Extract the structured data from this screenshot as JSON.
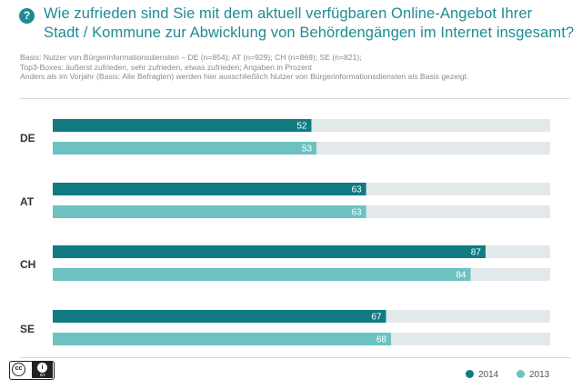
{
  "header": {
    "badge": "?",
    "title_line1": "Wie zufrieden sind Sie mit dem aktuell verfügbaren Online-Angebot Ihrer",
    "title_line2": "Stadt / Kommune zur Abwicklung von Behördengängen im Internet insgesamt?"
  },
  "basis": {
    "line1": "Basis: Nutzer von Bürgerinformationsdiensten – DE (n=854); AT (n=929); CH (n=869); SE (n=821);",
    "line2": "Top3-Boxes: äußerst zufrieden, sehr zufrieden, etwas zufrieden; Angaben in Prozent",
    "line3": "Anders als im Vorjahr (Basis: Alle Befragten) werden hier ausschließlich Nutzer von Bürgerinformationsdiensten als Basis gezeigt."
  },
  "colors": {
    "series_2014": "#117b82",
    "series_2013": "#6cc2c1",
    "track": "#e3e8ea",
    "title": "#1d8b93"
  },
  "license": {
    "cc": "cc",
    "by": "BY"
  },
  "chart_data": {
    "type": "bar",
    "orientation": "horizontal",
    "categories": [
      "DE",
      "AT",
      "CH",
      "SE"
    ],
    "series": [
      {
        "name": "2014",
        "values": [
          52,
          63,
          87,
          67
        ]
      },
      {
        "name": "2013",
        "values": [
          53,
          63,
          84,
          68
        ]
      }
    ],
    "xlim": [
      0,
      100
    ],
    "unit": "%",
    "legend_position": "bottom-right",
    "grid": false
  }
}
